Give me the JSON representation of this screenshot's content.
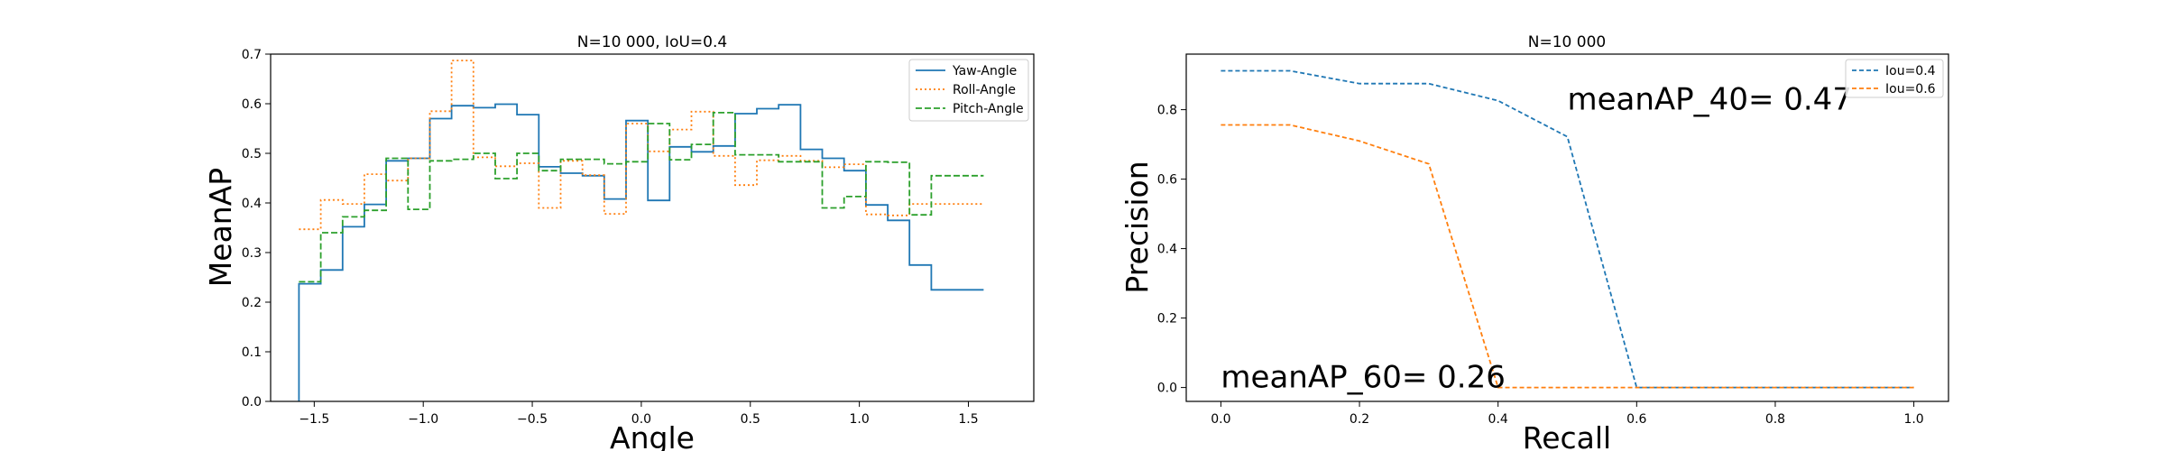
{
  "chart_data": [
    {
      "type": "line",
      "step": "post",
      "title": "N=10 000, IoU=0.4",
      "xlabel": "Angle",
      "ylabel": "MeanAP",
      "xlim": [
        -1.7,
        1.8
      ],
      "ylim": [
        0.0,
        0.7
      ],
      "xticks": [
        -1.5,
        -1.0,
        -0.5,
        0.0,
        0.5,
        1.0,
        1.5
      ],
      "xtick_labels": [
        "−1.5",
        "−1.0",
        "−0.5",
        "0.0",
        "0.5",
        "1.0",
        "1.5"
      ],
      "yticks": [
        0.0,
        0.1,
        0.2,
        0.3,
        0.4,
        0.5,
        0.6,
        0.7
      ],
      "ytick_labels": [
        "0.0",
        "0.1",
        "0.2",
        "0.3",
        "0.4",
        "0.5",
        "0.6",
        "0.7"
      ],
      "grid": false,
      "legend": "top-right",
      "x": [
        -1.57,
        -1.47,
        -1.37,
        -1.27,
        -1.17,
        -1.07,
        -0.97,
        -0.87,
        -0.77,
        -0.67,
        -0.57,
        -0.47,
        -0.37,
        -0.27,
        -0.17,
        -0.07,
        0.03,
        0.13,
        0.23,
        0.33,
        0.43,
        0.53,
        0.63,
        0.73,
        0.83,
        0.93,
        1.03,
        1.13,
        1.23,
        1.33,
        1.43,
        1.53,
        1.57
      ],
      "series": [
        {
          "name": "Yaw-Angle",
          "color": "#1f77b4",
          "dash": "solid",
          "start_from": 0.0,
          "values": [
            0.237,
            0.265,
            0.352,
            0.397,
            0.485,
            0.49,
            0.57,
            0.596,
            0.592,
            0.599,
            0.578,
            0.473,
            0.46,
            0.455,
            0.408,
            0.566,
            0.405,
            0.513,
            0.503,
            0.515,
            0.58,
            0.59,
            0.598,
            0.508,
            0.49,
            0.465,
            0.396,
            0.365,
            0.275,
            0.225,
            0.225,
            0.225,
            0.225
          ]
        },
        {
          "name": "Roll-Angle",
          "color": "#ff7f0e",
          "dash": "dotted",
          "start_from": null,
          "values": [
            0.347,
            0.406,
            0.398,
            0.458,
            0.445,
            0.49,
            0.585,
            0.687,
            0.492,
            0.474,
            0.48,
            0.39,
            0.485,
            0.456,
            0.378,
            0.56,
            0.504,
            0.548,
            0.584,
            0.495,
            0.436,
            0.486,
            0.495,
            0.485,
            0.472,
            0.478,
            0.377,
            0.375,
            0.398,
            0.398,
            0.398,
            0.398,
            0.398
          ]
        },
        {
          "name": "Pitch-Angle",
          "color": "#2ca02c",
          "dash": "dashed",
          "start_from": null,
          "values": [
            0.241,
            0.34,
            0.372,
            0.385,
            0.49,
            0.387,
            0.485,
            0.488,
            0.5,
            0.449,
            0.5,
            0.465,
            0.488,
            0.488,
            0.479,
            0.483,
            0.56,
            0.487,
            0.518,
            0.582,
            0.497,
            0.497,
            0.483,
            0.483,
            0.39,
            0.413,
            0.483,
            0.482,
            0.376,
            0.455,
            0.455,
            0.455,
            0.455
          ]
        }
      ]
    },
    {
      "type": "line",
      "title": "N=10 000",
      "xlabel": "Recall",
      "ylabel": "Precision",
      "xlim": [
        -0.05,
        1.05
      ],
      "ylim": [
        -0.04,
        0.96
      ],
      "xticks": [
        0.0,
        0.2,
        0.4,
        0.6,
        0.8,
        1.0
      ],
      "xtick_labels": [
        "0.0",
        "0.2",
        "0.4",
        "0.6",
        "0.8",
        "1.0"
      ],
      "yticks": [
        0.0,
        0.2,
        0.4,
        0.6,
        0.8
      ],
      "ytick_labels": [
        "0.0",
        "0.2",
        "0.4",
        "0.6",
        "0.8"
      ],
      "grid": false,
      "legend": "top-right",
      "series": [
        {
          "name": "Iou=0.4",
          "color": "#1f77b4",
          "dash": "dashed",
          "x": [
            0.0,
            0.1,
            0.2,
            0.3,
            0.4,
            0.5,
            0.6,
            0.7,
            0.8,
            0.9,
            1.0
          ],
          "values": [
            0.912,
            0.912,
            0.875,
            0.875,
            0.826,
            0.722,
            0.0,
            0.0,
            0.0,
            0.0,
            0.0
          ]
        },
        {
          "name": "Iou=0.6",
          "color": "#ff7f0e",
          "dash": "dashed",
          "x": [
            0.0,
            0.1,
            0.2,
            0.3,
            0.4,
            0.5,
            0.6,
            0.7,
            0.8,
            0.9,
            1.0
          ],
          "values": [
            0.756,
            0.756,
            0.71,
            0.644,
            0.0,
            0.0,
            0.0,
            0.0,
            0.0,
            0.0,
            0.0
          ]
        }
      ],
      "annotations": [
        {
          "text": "meanAP_40= 0.47",
          "x": 0.5,
          "y": 0.8
        },
        {
          "text": "meanAP_60= 0.26",
          "x": 0.0,
          "y": 0.0
        }
      ]
    }
  ]
}
